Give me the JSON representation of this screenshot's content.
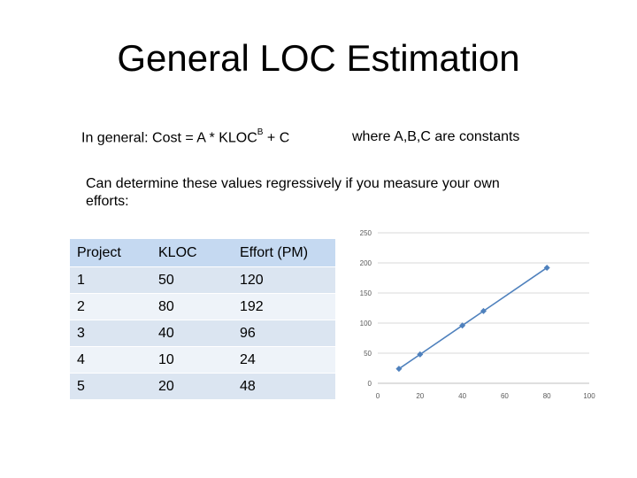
{
  "title": "General LOC Estimation",
  "formula": {
    "prefix": "In general:  Cost = A * KLOC",
    "exponent": "B",
    "suffix": " + C",
    "note": "where A,B,C are constants"
  },
  "description": "Can determine these values regressively if you measure your own efforts:",
  "table": {
    "headers": [
      "Project",
      "KLOC",
      "Effort (PM)"
    ],
    "rows": [
      [
        "1",
        "50",
        "120"
      ],
      [
        "2",
        "80",
        "192"
      ],
      [
        "3",
        "40",
        "96"
      ],
      [
        "4",
        "10",
        "24"
      ],
      [
        "5",
        "20",
        "48"
      ]
    ]
  },
  "chart_data": {
    "type": "line",
    "x": [
      10,
      20,
      40,
      50,
      80
    ],
    "y": [
      24,
      48,
      96,
      120,
      192
    ],
    "xlim": [
      0,
      100
    ],
    "ylim": [
      0,
      250
    ],
    "x_ticks": [
      "0",
      "20",
      "40",
      "60",
      "80",
      "100"
    ],
    "y_ticks": [
      "0",
      "50",
      "100",
      "150",
      "200",
      "250"
    ],
    "grid": "horizontal",
    "color": "#4f81bd"
  }
}
